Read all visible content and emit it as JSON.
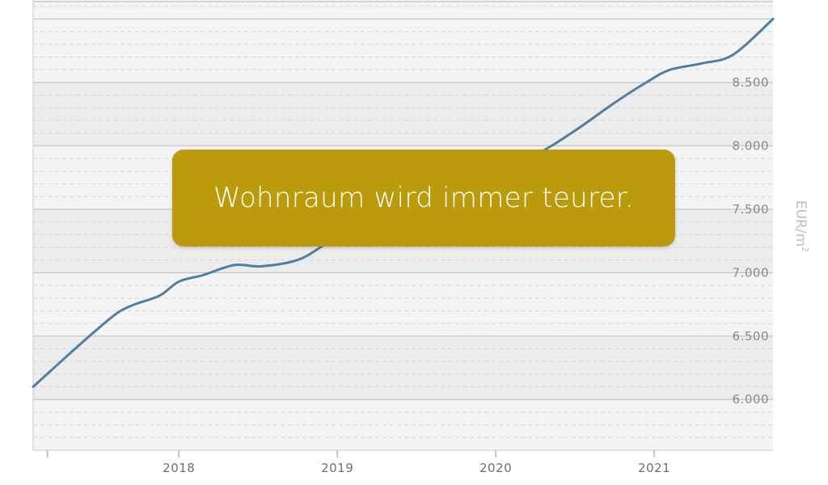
{
  "banner": {
    "text": "Wohnraum wird immer teurer."
  },
  "colors": {
    "line": "#4e7fa1",
    "banner": "#bb9a0b",
    "banner_text": "#ffffff"
  },
  "chart_data": {
    "type": "line",
    "title": "",
    "xlabel": "",
    "ylabel": "EUR/m²",
    "y_unit_label": "EUR/m",
    "y_unit_superscript": "2",
    "yaxis_side": "right",
    "grid": true,
    "xlim": [
      2017.08,
      2021.75
    ],
    "ylim": [
      5600,
      9150
    ],
    "yticks": [
      6000,
      6500,
      7000,
      7500,
      8000,
      8500
    ],
    "ytick_labels": [
      "6.000",
      "6.500",
      "7.000",
      "7.500",
      "8.000",
      "8.500"
    ],
    "xticks": [
      2018,
      2019,
      2020,
      2021
    ],
    "xtick_labels": [
      "2018",
      "2019",
      "2020",
      "2021"
    ],
    "series": [
      {
        "x": [
          2017.08,
          2017.3,
          2017.5,
          2017.62,
          2017.72,
          2017.88,
          2018.0,
          2018.15,
          2018.35,
          2018.52,
          2018.75,
          2018.92,
          2019.1,
          2019.3,
          2019.5,
          2019.75,
          2020.0,
          2020.25,
          2020.5,
          2020.75,
          2020.95,
          2021.1,
          2021.3,
          2021.5,
          2021.75
        ],
        "y": [
          6100,
          6350,
          6570,
          6690,
          6750,
          6820,
          6930,
          6980,
          7060,
          7050,
          7100,
          7220,
          7340,
          7450,
          7580,
          7700,
          7820,
          7930,
          8120,
          8340,
          8500,
          8600,
          8650,
          8720,
          9000
        ]
      }
    ]
  }
}
